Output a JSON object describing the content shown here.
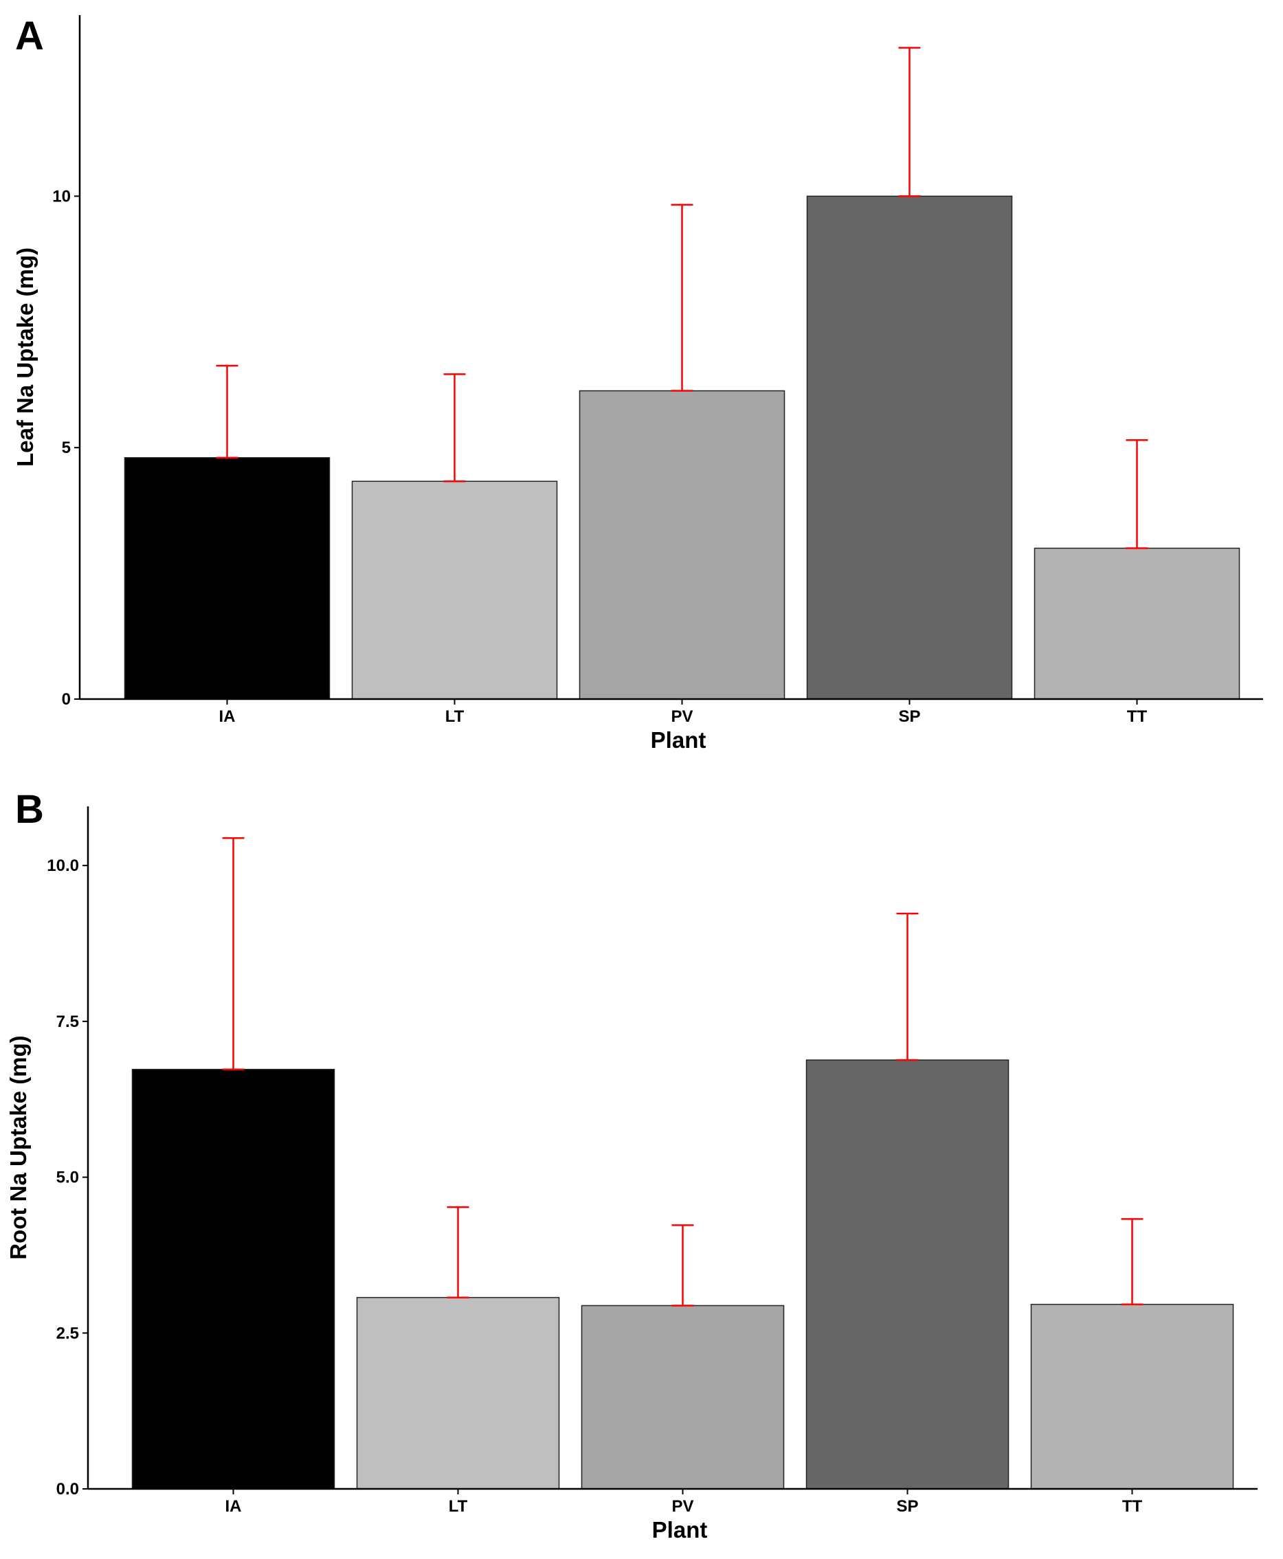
{
  "chart_data": [
    {
      "type": "bar",
      "panel_label": "A",
      "categories": [
        "IA",
        "LT",
        "PV",
        "SP",
        "TT"
      ],
      "values": [
        4.8,
        4.33,
        6.13,
        10.0,
        3.0
      ],
      "errors": [
        1.83,
        2.13,
        3.7,
        2.95,
        2.15
      ],
      "bar_colors": [
        "#000000",
        "#bfbfbf",
        "#a6a6a6",
        "#666666",
        "#b3b3b3"
      ],
      "error_color": "#ff0000",
      "xlabel": "Plant",
      "ylabel": "Leaf Na Uptake (mg)",
      "ylim": [
        0,
        13.6
      ],
      "yticks": [
        0,
        5,
        10
      ],
      "ytick_labels": [
        "0",
        "5",
        "10"
      ],
      "grid": false
    },
    {
      "type": "bar",
      "panel_label": "B",
      "categories": [
        "IA",
        "LT",
        "PV",
        "SP",
        "TT"
      ],
      "values": [
        6.73,
        3.07,
        2.94,
        6.88,
        2.96
      ],
      "errors": [
        3.71,
        1.45,
        1.29,
        2.35,
        1.37
      ],
      "bar_colors": [
        "#000000",
        "#bfbfbf",
        "#a6a6a6",
        "#666666",
        "#b3b3b3"
      ],
      "error_color": "#ff0000",
      "xlabel": "Plant",
      "ylabel": "Root Na Uptake (mg)",
      "ylim": [
        0,
        10.95
      ],
      "yticks": [
        0,
        2.5,
        5,
        7.5,
        10
      ],
      "ytick_labels": [
        "0.0",
        "2.5",
        "5.0",
        "7.5",
        "10.0"
      ],
      "grid": false
    }
  ]
}
